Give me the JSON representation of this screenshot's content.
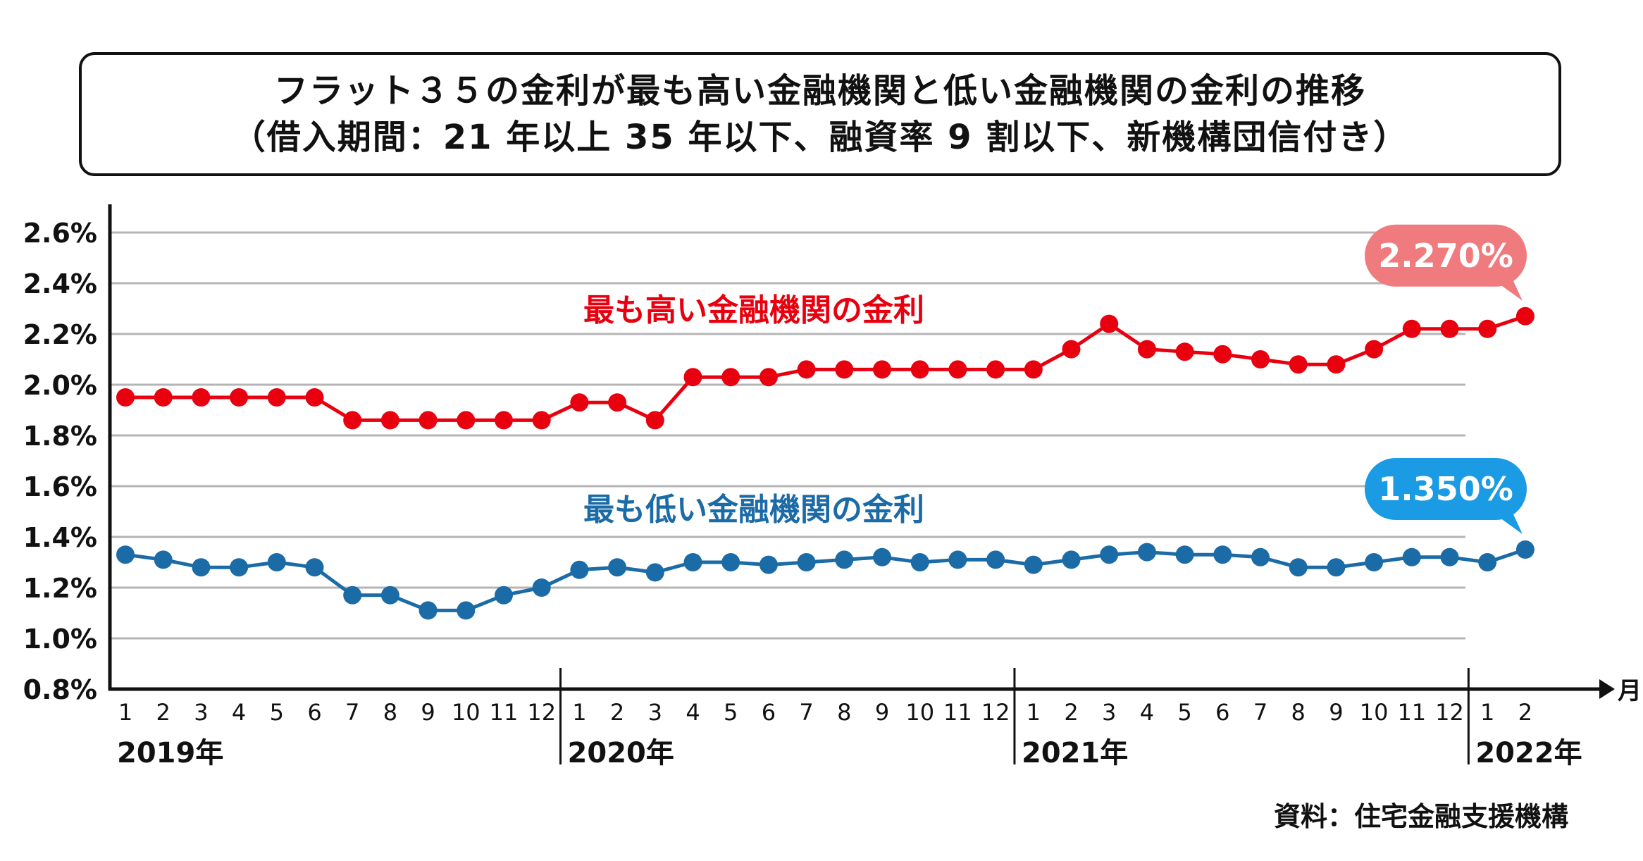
{
  "title": {
    "line1": "フラット３５の金利が最も高い金融機関と低い金融機関の金利の推移",
    "line2": "（借入期間：21 年以上 35 年以下、融資率 9 割以下、新機構団信付き）"
  },
  "source": "資料：住宅金融支援機構",
  "colors": {
    "high": "#e8000f",
    "low": "#1b6ba6",
    "high_bubble": "#f07b7e",
    "low_bubble": "#1a9be3",
    "grid": "#b5b5b5"
  },
  "chart_data": {
    "type": "line",
    "ylim": [
      0.8,
      2.6
    ],
    "y_ticks": [
      "0.8%",
      "1.0%",
      "1.2%",
      "1.4%",
      "1.6%",
      "1.8%",
      "2.0%",
      "2.2%",
      "2.4%",
      "2.6%"
    ],
    "x_unit": "月",
    "years": [
      {
        "label": "2019年",
        "months": [
          "1",
          "2",
          "3",
          "4",
          "5",
          "6",
          "7",
          "8",
          "9",
          "10",
          "11",
          "12"
        ]
      },
      {
        "label": "2020年",
        "months": [
          "1",
          "2",
          "3",
          "4",
          "5",
          "6",
          "7",
          "8",
          "9",
          "10",
          "11",
          "12"
        ]
      },
      {
        "label": "2021年",
        "months": [
          "1",
          "2",
          "3",
          "4",
          "5",
          "6",
          "7",
          "8",
          "9",
          "10",
          "11",
          "12"
        ]
      },
      {
        "label": "2022年",
        "months": [
          "1",
          "2"
        ]
      }
    ],
    "series": [
      {
        "name": "最も高い金融機関の金利",
        "values": [
          1.95,
          1.95,
          1.95,
          1.95,
          1.95,
          1.95,
          1.86,
          1.86,
          1.86,
          1.86,
          1.86,
          1.86,
          1.93,
          1.93,
          1.86,
          2.03,
          2.03,
          2.03,
          2.06,
          2.06,
          2.06,
          2.06,
          2.06,
          2.06,
          2.06,
          2.14,
          2.24,
          2.14,
          2.13,
          2.12,
          2.1,
          2.08,
          2.08,
          2.14,
          2.22,
          2.22,
          2.22,
          2.27
        ],
        "callout": "2.270%"
      },
      {
        "name": "最も低い金融機関の金利",
        "values": [
          1.33,
          1.31,
          1.28,
          1.28,
          1.3,
          1.28,
          1.17,
          1.17,
          1.11,
          1.11,
          1.17,
          1.2,
          1.27,
          1.28,
          1.26,
          1.3,
          1.3,
          1.29,
          1.3,
          1.31,
          1.32,
          1.3,
          1.31,
          1.31,
          1.29,
          1.31,
          1.33,
          1.34,
          1.33,
          1.33,
          1.32,
          1.28,
          1.28,
          1.3,
          1.32,
          1.32,
          1.3,
          1.35
        ],
        "callout": "1.350%"
      }
    ]
  }
}
